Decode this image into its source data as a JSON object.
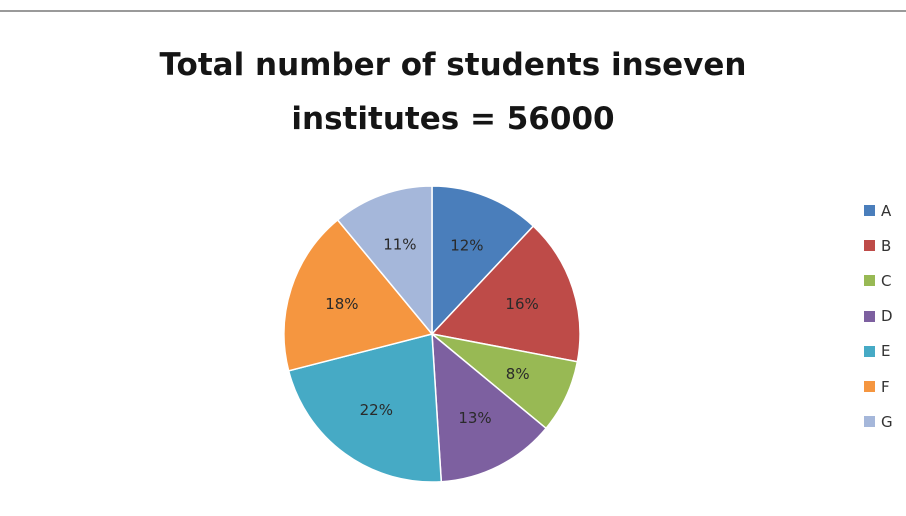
{
  "chart_data": {
    "type": "pie",
    "title_lines": [
      "Total number of students inseven",
      "institutes = 56000"
    ],
    "categories": [
      "A",
      "B",
      "C",
      "D",
      "E",
      "F",
      "G"
    ],
    "values": [
      12,
      16,
      8,
      13,
      22,
      18,
      11
    ],
    "labels": [
      "12%",
      "16%",
      "8%",
      "13%",
      "22%",
      "18%",
      "11%"
    ],
    "colors": [
      "#4A7EBB",
      "#BE4B48",
      "#98B954",
      "#7D60A0",
      "#46AAC5",
      "#F59640",
      "#A5B7DA"
    ],
    "legend_position": "right"
  }
}
